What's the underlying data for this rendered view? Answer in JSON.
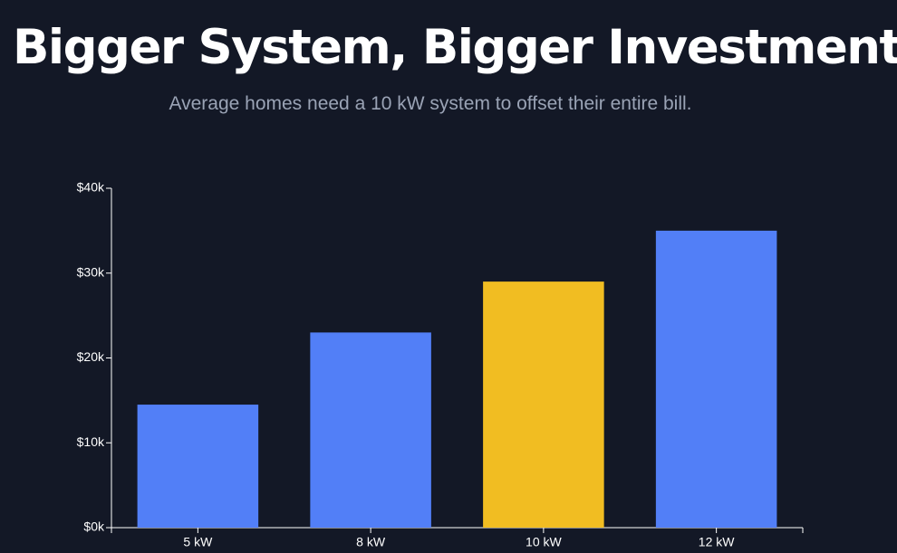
{
  "header": {
    "title": "Bigger System, Bigger Investment",
    "subtitle": "Average homes need a 10 kW system to offset their entire bill."
  },
  "chart_data": {
    "type": "bar",
    "categories": [
      "5 kW",
      "8 kW",
      "10 kW",
      "12 kW"
    ],
    "values": [
      14500,
      23000,
      29000,
      35000
    ],
    "highlight_index": 2,
    "colors": {
      "bar": "#527ff7",
      "highlight": "#f1bd22",
      "axis": "#ffffff"
    },
    "ylim": [
      0,
      40000
    ],
    "y_ticks": [
      {
        "value": 0,
        "label": "$0k"
      },
      {
        "value": 10000,
        "label": "$10k"
      },
      {
        "value": 20000,
        "label": "$20k"
      },
      {
        "value": 30000,
        "label": "$30k"
      },
      {
        "value": 40000,
        "label": "$40k"
      }
    ],
    "xlabel": "",
    "ylabel": "",
    "grid": false
  }
}
